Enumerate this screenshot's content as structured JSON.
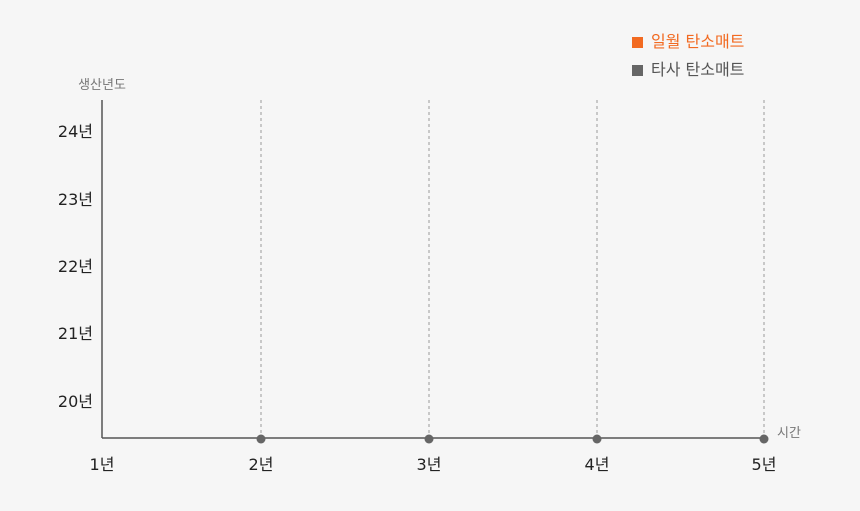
{
  "chart_data": {
    "type": "line",
    "title": "",
    "xlabel": "시간",
    "ylabel": "생산년도",
    "x_categories": [
      "1년",
      "2년",
      "3년",
      "4년",
      "5년"
    ],
    "y_categories": [
      "20년",
      "21년",
      "22년",
      "23년",
      "24년"
    ],
    "grid": "vertical dashed",
    "legend_placement": "top-right",
    "legend": [
      {
        "name": "일월 탄소매트",
        "color": "#f26a21"
      },
      {
        "name": "타사 탄소매트",
        "color": "#666666"
      }
    ],
    "markers": {
      "x": [
        "2년",
        "3년",
        "4년",
        "5년"
      ],
      "position": "baseline",
      "color": "#666666"
    }
  }
}
